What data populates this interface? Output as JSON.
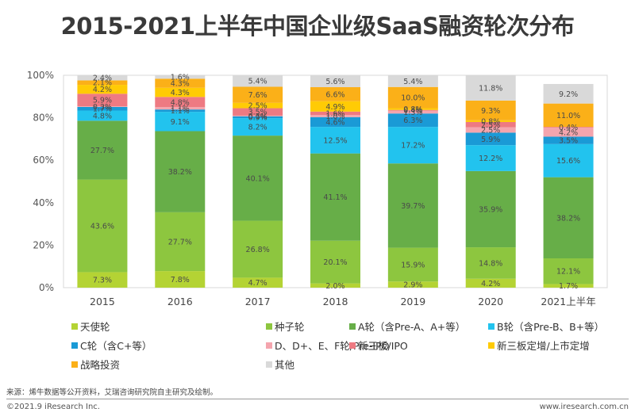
{
  "chart_data": {
    "type": "bar",
    "stacked": true,
    "title": "2015-2021上半年中国企业级SaaS融资轮次分布",
    "xlabel": "",
    "ylabel": "",
    "ylim": [
      0,
      100
    ],
    "yticks": [
      "0%",
      "20%",
      "40%",
      "60%",
      "80%",
      "100%"
    ],
    "ytick_values": [
      0,
      20,
      40,
      60,
      80,
      100
    ],
    "categories": [
      "2015",
      "2016",
      "2017",
      "2018",
      "2019",
      "2020",
      "2021上半年"
    ],
    "legend_position": "bottom",
    "grid": false,
    "series": [
      {
        "name": "天使轮",
        "color": "#B4D334",
        "values": [
          7.3,
          7.8,
          4.7,
          2.0,
          2.9,
          4.2,
          1.7
        ]
      },
      {
        "name": "种子轮",
        "color": "#8DC63F",
        "values": [
          43.6,
          27.7,
          26.8,
          20.1,
          15.9,
          14.8,
          12.1
        ]
      },
      {
        "name": "A轮（含Pre-A、A+等）",
        "color": "#67AE48",
        "values": [
          27.7,
          38.2,
          40.1,
          41.1,
          39.7,
          35.9,
          38.2
        ]
      },
      {
        "name": "B轮（含Pre-B、B+等）",
        "color": "#22C3EE",
        "values": [
          4.8,
          9.1,
          8.2,
          12.5,
          17.2,
          12.2,
          15.6
        ]
      },
      {
        "name": "C轮（含C+等）",
        "color": "#1A9AD6",
        "values": [
          1.7,
          1.1,
          0.9,
          4.6,
          6.3,
          5.9,
          3.5
        ]
      },
      {
        "name": "D、D+、E、F轮/Pre-IPO",
        "color": "#F4A5AE",
        "values": [
          0.3,
          1.1,
          0.3,
          1.0,
          1.3,
          2.5,
          4.2
        ]
      },
      {
        "name": "新三板/IPO",
        "color": "#EE7A82",
        "values": [
          5.9,
          4.8,
          3.5,
          1.6,
          0.4,
          2.5,
          0.4
        ]
      },
      {
        "name": "新三板定增/上市定增",
        "color": "#FFCB05",
        "values": [
          4.2,
          4.3,
          2.5,
          4.9,
          0.8,
          0.8,
          null
        ]
      },
      {
        "name": "战略投资",
        "color": "#FBB018",
        "values": [
          2.1,
          4.3,
          7.6,
          6.6,
          10.0,
          9.3,
          11.0
        ]
      },
      {
        "name": "其他",
        "color": "#D9D9D9",
        "values": [
          2.4,
          1.6,
          5.4,
          5.6,
          5.4,
          11.8,
          9.2
        ]
      }
    ]
  },
  "legend": [
    {
      "label": "天使轮"
    },
    {
      "label": "种子轮"
    },
    {
      "label": "A轮（含Pre-A、A+等）"
    },
    {
      "label": "B轮（含Pre-B、B+等）"
    },
    {
      "label": "C轮（含C+等）"
    },
    {
      "label": "D、D+、E、F轮/Pre-IPO"
    },
    {
      "label": "新三板/IPO"
    },
    {
      "label": "新三板定增/上市定增"
    },
    {
      "label": "战略投资"
    },
    {
      "label": "其他"
    }
  ],
  "footer": {
    "source": "来源：烯牛数据等公开资料，艾瑞咨询研究院自主研究及绘制。",
    "copyright": "©2021.9 iResearch Inc.",
    "website": "www.iresearch.com.cn"
  }
}
